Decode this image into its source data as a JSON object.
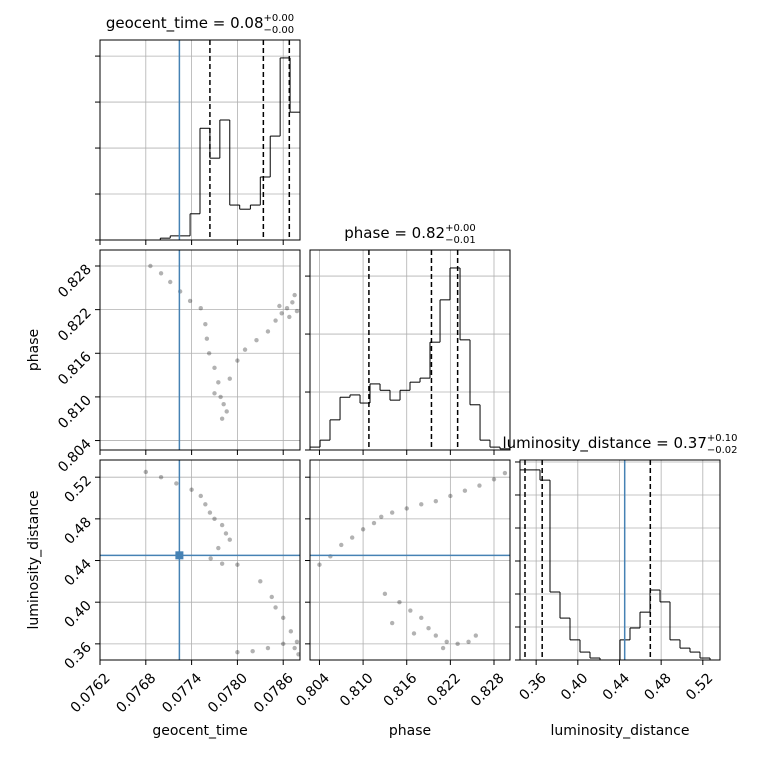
{
  "chart_data": [
    {
      "type": "histogram",
      "color": "#000000",
      "title": {
        "text": "geocent_time = 0.08",
        "sup": "+0.00",
        "sub": "−0.00"
      },
      "bins": [
        0.0762,
        0.07633,
        0.07646,
        0.07659,
        0.07672,
        0.07686,
        0.07699,
        0.07712,
        0.07725,
        0.07738,
        0.07751,
        0.07764,
        0.07777,
        0.0779,
        0.07803,
        0.07817,
        0.0783,
        0.07843,
        0.07856,
        0.07869,
        0.07882
      ],
      "values": [
        0,
        0,
        0,
        0,
        0,
        0,
        0.04,
        0.09,
        0.09,
        0.57,
        2.43,
        1.78,
        2.61,
        0.76,
        0.67,
        0.76,
        1.37,
        2.26,
        3.96,
        2.78
      ],
      "xlim": [
        0.0762,
        0.07882
      ],
      "ylim": [
        0,
        4.35
      ],
      "yticks": [
        0,
        1,
        2,
        3,
        4
      ],
      "quantiles": [
        0.07764,
        0.07834,
        0.07868
      ],
      "truth": 0.07724,
      "truth_color": "#4682b4"
    },
    {
      "type": "scatter",
      "color": "#000000",
      "x": [
        0.07686,
        0.077,
        0.07712,
        0.07725,
        0.07738,
        0.07752,
        0.07758,
        0.0776,
        0.07763,
        0.0777,
        0.07775,
        0.07778,
        0.07782,
        0.07786,
        0.0778,
        0.0777,
        0.0779,
        0.078,
        0.0781,
        0.07825,
        0.0784,
        0.0785,
        0.07858,
        0.07865,
        0.07872,
        0.07868,
        0.07878,
        0.07855,
        0.07875
      ],
      "y": [
        0.828,
        0.827,
        0.8258,
        0.8245,
        0.8232,
        0.8222,
        0.82,
        0.818,
        0.816,
        0.814,
        0.812,
        0.81,
        0.809,
        0.808,
        0.807,
        0.8105,
        0.8125,
        0.815,
        0.8165,
        0.8178,
        0.819,
        0.8205,
        0.8215,
        0.8222,
        0.823,
        0.821,
        0.8218,
        0.8225,
        0.824
      ],
      "xlim": [
        0.0762,
        0.07882
      ],
      "ylim": [
        0.8027,
        0.8302
      ],
      "yticks": [
        0.804,
        {
          "value": 0.81,
          "label": "0.810"
        },
        0.816,
        0.822,
        0.828
      ],
      "ylabel": "phase",
      "truth_x": 0.07724,
      "truth_color": "#4682b4"
    },
    {
      "type": "histogram",
      "color": "#000000",
      "title": {
        "text": "phase = 0.82",
        "sup": "+0.00",
        "sub": "−0.01"
      },
      "bins": [
        0.8027,
        0.80408,
        0.80545,
        0.80683,
        0.8082,
        0.80958,
        0.81095,
        0.81233,
        0.8137,
        0.81508,
        0.81645,
        0.81783,
        0.8192,
        0.82058,
        0.82195,
        0.82333,
        0.8247,
        0.82608,
        0.82745,
        0.82883,
        0.8302
      ],
      "values": [
        0.05,
        0.17,
        0.52,
        0.91,
        0.95,
        0.81,
        1.14,
        1.03,
        0.86,
        1.03,
        1.17,
        1.24,
        1.86,
        2.59,
        3.14,
        1.9,
        0.78,
        0.17,
        0.05,
        0.02
      ],
      "xlim": [
        0.8027,
        0.8302
      ],
      "ylim": [
        0,
        3.45
      ],
      "yticks": [
        0,
        1,
        2,
        3
      ],
      "quantiles": [
        0.8108,
        0.8194,
        0.823
      ]
    },
    {
      "type": "scatter",
      "color": "#000000",
      "x": [
        0.0768,
        0.077,
        0.0772,
        0.0774,
        0.07752,
        0.07758,
        0.07764,
        0.0777,
        0.0778,
        0.07785,
        0.0779,
        0.07775,
        0.07765,
        0.0778,
        0.078,
        0.0783,
        0.07845,
        0.0785,
        0.0786,
        0.0787,
        0.07878,
        0.0786,
        0.0784,
        0.0782,
        0.078,
        0.07875,
        0.0788
      ],
      "y": [
        0.525,
        0.52,
        0.514,
        0.508,
        0.502,
        0.494,
        0.486,
        0.48,
        0.474,
        0.466,
        0.46,
        0.452,
        0.442,
        0.437,
        0.436,
        0.42,
        0.405,
        0.395,
        0.385,
        0.372,
        0.362,
        0.36,
        0.356,
        0.353,
        0.352,
        0.356,
        0.35
      ],
      "xlim": [
        0.0762,
        0.07882
      ],
      "ylim": [
        0.3445,
        0.5365
      ],
      "xticks": [
        0.0762,
        0.0768,
        0.0774,
        {
          "value": 0.078,
          "label": "0.0780"
        },
        0.0786
      ],
      "yticks": [
        0.36,
        {
          "value": 0.4,
          "label": "0.40"
        },
        0.44,
        0.48,
        0.52
      ],
      "xlabel": "geocent_time",
      "ylabel": "luminosity_distance",
      "truth_x": 0.07724,
      "truth_y": 0.445,
      "truth_color": "#4682b4"
    },
    {
      "type": "scatter",
      "color": "#000000",
      "x": [
        0.804,
        0.8055,
        0.807,
        0.8085,
        0.81,
        0.8115,
        0.8125,
        0.814,
        0.816,
        0.818,
        0.82,
        0.822,
        0.824,
        0.826,
        0.828,
        0.8295,
        0.813,
        0.815,
        0.8165,
        0.818,
        0.819,
        0.82,
        0.8215,
        0.823,
        0.8245,
        0.8255,
        0.821,
        0.817,
        0.814
      ],
      "y": [
        0.436,
        0.444,
        0.455,
        0.462,
        0.47,
        0.476,
        0.482,
        0.486,
        0.49,
        0.494,
        0.497,
        0.502,
        0.507,
        0.512,
        0.518,
        0.524,
        0.408,
        0.4,
        0.392,
        0.385,
        0.375,
        0.368,
        0.362,
        0.36,
        0.362,
        0.368,
        0.356,
        0.37,
        0.38
      ],
      "xlim": [
        0.8027,
        0.8302
      ],
      "ylim": [
        0.3445,
        0.5365
      ],
      "xticks": [
        0.804,
        {
          "value": 0.81,
          "label": "0.810"
        },
        0.816,
        0.822,
        0.828
      ],
      "xlabel": "phase",
      "truth_y": 0.445,
      "truth_color": "#4682b4"
    },
    {
      "type": "histogram",
      "color": "#000000",
      "title": {
        "text": "luminosity_distance = 0.37",
        "sup": "+0.10",
        "sub": "−0.02"
      },
      "bins": [
        0.3445,
        0.3541,
        0.3637,
        0.3733,
        0.3829,
        0.3925,
        0.4021,
        0.4117,
        0.4213,
        0.4309,
        0.4405,
        0.4501,
        0.4597,
        0.4693,
        0.4789,
        0.4885,
        0.4981,
        0.5077,
        0.5173,
        0.5269,
        0.5365
      ],
      "values": [
        5.76,
        5.76,
        5.45,
        2.06,
        1.27,
        0.61,
        0.24,
        0.06,
        0,
        0,
        0.61,
        0.97,
        1.45,
        2.12,
        1.76,
        0.61,
        0.36,
        0.24,
        0.06,
        0
      ],
      "xlim": [
        0.3445,
        0.5365
      ],
      "ylim": [
        0,
        6.06
      ],
      "yticks": [
        0,
        1,
        2,
        3,
        4,
        5,
        6
      ],
      "xticks": [
        0.36,
        {
          "value": 0.4,
          "label": "0.40"
        },
        0.44,
        0.48,
        0.52
      ],
      "xlabel": "luminosity_distance",
      "quantiles": [
        0.3493,
        0.3658,
        0.4696
      ],
      "truth": 0.445,
      "truth_color": "#4682b4"
    }
  ]
}
